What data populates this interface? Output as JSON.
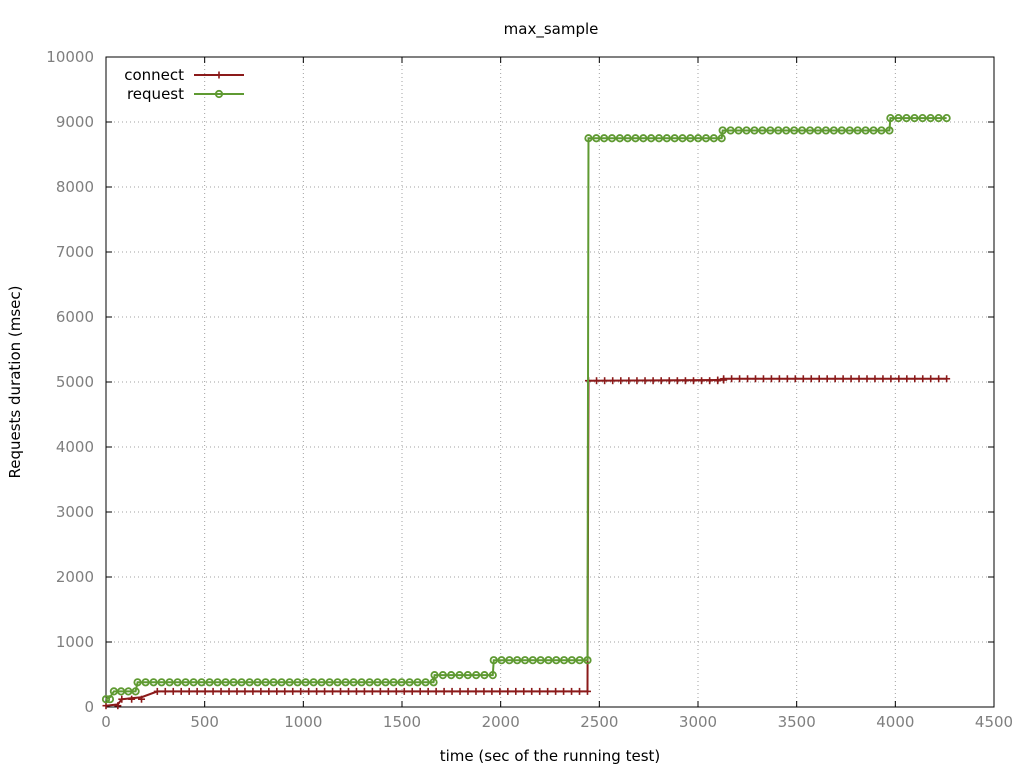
{
  "chart_data": {
    "type": "line",
    "title": "max_sample",
    "xlabel": "time (sec of the running test)",
    "ylabel": "Requests duration (msec)",
    "xlim": [
      0,
      4500
    ],
    "ylim": [
      0,
      10000
    ],
    "x_ticks": [
      0,
      500,
      1000,
      1500,
      2000,
      2500,
      3000,
      3500,
      4000,
      4500
    ],
    "y_ticks": [
      0,
      1000,
      2000,
      3000,
      4000,
      5000,
      6000,
      7000,
      8000,
      9000,
      10000
    ],
    "grid": true,
    "legend_position": "top-left",
    "series": [
      {
        "name": "connect",
        "color": "#8b1a1a",
        "marker": "plus",
        "points": [
          [
            0,
            20
          ],
          [
            60,
            40
          ],
          [
            80,
            120
          ],
          [
            180,
            150
          ],
          [
            260,
            240
          ],
          [
            2440,
            240
          ],
          [
            2445,
            5020
          ],
          [
            3100,
            5030
          ],
          [
            3130,
            5050
          ],
          [
            4260,
            5050
          ]
        ]
      },
      {
        "name": "request",
        "color": "#5f9a32",
        "marker": "circle",
        "points": [
          [
            0,
            120
          ],
          [
            20,
            150
          ],
          [
            40,
            240
          ],
          [
            150,
            240
          ],
          [
            160,
            380
          ],
          [
            1660,
            380
          ],
          [
            1665,
            490
          ],
          [
            1960,
            490
          ],
          [
            1965,
            720
          ],
          [
            2440,
            720
          ],
          [
            2445,
            8750
          ],
          [
            3120,
            8750
          ],
          [
            3125,
            8870
          ],
          [
            3970,
            8870
          ],
          [
            3975,
            9060
          ],
          [
            4260,
            9060
          ]
        ]
      }
    ]
  }
}
